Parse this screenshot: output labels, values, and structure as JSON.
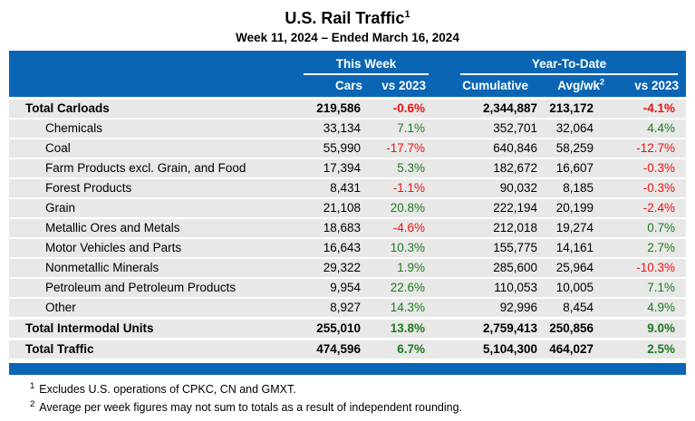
{
  "page": {
    "title": "U.S. Rail Traffic",
    "title_footnote_marker": "1",
    "subtitle": "Week 11, 2024 – Ended March 16, 2024"
  },
  "colors": {
    "header_blue": "#0a66b4",
    "row_gray": "#e8e8e8",
    "positive_green": "#1e7b1e",
    "negative_red": "#ee1111"
  },
  "chart_data": {
    "type": "table",
    "title": "U.S. Rail Traffic",
    "subtitle": "Week 11, 2024 – Ended March 16, 2024",
    "column_groups": [
      {
        "label": "This Week",
        "columns": [
          "Cars",
          "vs 2023"
        ]
      },
      {
        "label": "Year-To-Date",
        "columns": [
          "Cumulative",
          "Avg/wk",
          "vs 2023"
        ]
      }
    ],
    "columns": [
      {
        "id": "cars",
        "label": "Cars"
      },
      {
        "id": "week_vs_2023",
        "label": "vs 2023"
      },
      {
        "id": "cumulative",
        "label": "Cumulative"
      },
      {
        "id": "avg_per_week",
        "label": "Avg/wk",
        "footnote_marker": "2"
      },
      {
        "id": "ytd_vs_2023",
        "label": "vs 2023"
      }
    ],
    "rows": [
      {
        "label": "Total Carloads",
        "emphasis": true,
        "indent": false,
        "cars": "219,586",
        "week_vs_2023": "-0.6%",
        "cumulative": "2,344,887",
        "avg_per_week": "213,172",
        "ytd_vs_2023": "-4.1%",
        "gap_before": false
      },
      {
        "label": "Chemicals",
        "emphasis": false,
        "indent": true,
        "cars": "33,134",
        "week_vs_2023": "7.1%",
        "cumulative": "352,701",
        "avg_per_week": "32,064",
        "ytd_vs_2023": "4.4%",
        "gap_before": false
      },
      {
        "label": "Coal",
        "emphasis": false,
        "indent": true,
        "cars": "55,990",
        "week_vs_2023": "-17.7%",
        "cumulative": "640,846",
        "avg_per_week": "58,259",
        "ytd_vs_2023": "-12.7%",
        "gap_before": false
      },
      {
        "label": "Farm Products excl. Grain, and Food",
        "emphasis": false,
        "indent": true,
        "cars": "17,394",
        "week_vs_2023": "5.3%",
        "cumulative": "182,672",
        "avg_per_week": "16,607",
        "ytd_vs_2023": "-0.3%",
        "gap_before": false
      },
      {
        "label": "Forest Products",
        "emphasis": false,
        "indent": true,
        "cars": "8,431",
        "week_vs_2023": "-1.1%",
        "cumulative": "90,032",
        "avg_per_week": "8,185",
        "ytd_vs_2023": "-0.3%",
        "gap_before": false
      },
      {
        "label": "Grain",
        "emphasis": false,
        "indent": true,
        "cars": "21,108",
        "week_vs_2023": "20.8%",
        "cumulative": "222,194",
        "avg_per_week": "20,199",
        "ytd_vs_2023": "-2.4%",
        "gap_before": false
      },
      {
        "label": "Metallic Ores and Metals",
        "emphasis": false,
        "indent": true,
        "cars": "18,683",
        "week_vs_2023": "-4.6%",
        "cumulative": "212,018",
        "avg_per_week": "19,274",
        "ytd_vs_2023": "0.7%",
        "gap_before": false
      },
      {
        "label": "Motor Vehicles and Parts",
        "emphasis": false,
        "indent": true,
        "cars": "16,643",
        "week_vs_2023": "10.3%",
        "cumulative": "155,775",
        "avg_per_week": "14,161",
        "ytd_vs_2023": "2.7%",
        "gap_before": false
      },
      {
        "label": "Nonmetallic Minerals",
        "emphasis": false,
        "indent": true,
        "cars": "29,322",
        "week_vs_2023": "1.9%",
        "cumulative": "285,600",
        "avg_per_week": "25,964",
        "ytd_vs_2023": "-10.3%",
        "gap_before": false
      },
      {
        "label": "Petroleum and Petroleum Products",
        "emphasis": false,
        "indent": true,
        "cars": "9,954",
        "week_vs_2023": "22.6%",
        "cumulative": "110,053",
        "avg_per_week": "10,005",
        "ytd_vs_2023": "7.1%",
        "gap_before": false
      },
      {
        "label": "Other",
        "emphasis": false,
        "indent": true,
        "cars": "8,927",
        "week_vs_2023": "14.3%",
        "cumulative": "92,996",
        "avg_per_week": "8,454",
        "ytd_vs_2023": "4.9%",
        "gap_before": false
      },
      {
        "label": "Total Intermodal Units",
        "emphasis": true,
        "indent": false,
        "cars": "255,010",
        "week_vs_2023": "13.8%",
        "cumulative": "2,759,413",
        "avg_per_week": "250,856",
        "ytd_vs_2023": "9.0%",
        "gap_before": true
      },
      {
        "label": "Total Traffic",
        "emphasis": true,
        "indent": false,
        "cars": "474,596",
        "week_vs_2023": "6.7%",
        "cumulative": "5,104,300",
        "avg_per_week": "464,027",
        "ytd_vs_2023": "2.5%",
        "gap_before": true
      }
    ]
  },
  "footnotes": [
    {
      "marker": "1",
      "text": "Excludes U.S. operations of CPKC, CN and GMXT."
    },
    {
      "marker": "2",
      "text": "Average per week figures may not sum to totals as a result of independent rounding."
    }
  ]
}
